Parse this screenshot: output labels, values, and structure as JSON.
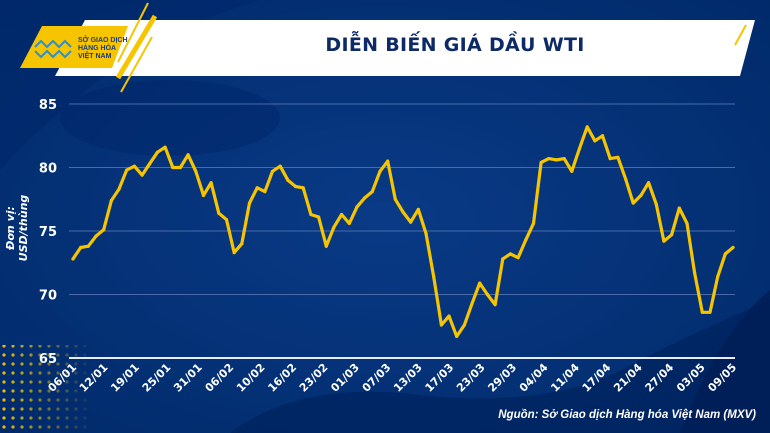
{
  "header": {
    "logo_text": [
      "SỞ GIAO DỊCH",
      "HÀNG HÓA",
      "VIỆT NAM"
    ],
    "title": "DIỄN BIẾN GIÁ DẦU WTI"
  },
  "colors": {
    "background": "#002d72",
    "line": "#f6c500",
    "accent": "#f6c500",
    "title": "#0d2a66"
  },
  "source": "Nguồn: Sở Giao dịch Hàng hóa Việt Nam (MXV)",
  "chart_data": {
    "type": "line",
    "title": "DIỄN BIẾN GIÁ DẦU WTI",
    "ylabel": "Đơn vị: USD/thùng",
    "xlabel": "",
    "ylim": [
      65,
      85
    ],
    "yticks": [
      65,
      70,
      75,
      80,
      85
    ],
    "grid": true,
    "x_tick_labels": [
      "06/01",
      "12/01",
      "19/01",
      "25/01",
      "31/01",
      "06/02",
      "10/02",
      "16/02",
      "23/02",
      "01/03",
      "07/03",
      "13/03",
      "17/03",
      "23/03",
      "29/03",
      "04/04",
      "11/04",
      "17/04",
      "21/04",
      "27/04",
      "03/05",
      "09/05"
    ],
    "values": [
      72.8,
      73.7,
      73.8,
      74.6,
      75.1,
      77.4,
      78.3,
      79.8,
      80.1,
      79.4,
      80.3,
      81.2,
      81.6,
      80.0,
      80.0,
      81.0,
      79.7,
      77.8,
      78.8,
      76.4,
      75.9,
      73.3,
      74.0,
      77.2,
      78.4,
      78.1,
      79.7,
      80.1,
      79.0,
      78.5,
      78.4,
      76.3,
      76.1,
      73.8,
      75.3,
      76.3,
      75.6,
      76.9,
      77.6,
      78.1,
      79.7,
      80.5,
      77.5,
      76.5,
      75.7,
      76.7,
      74.8,
      71.4,
      67.6,
      68.3,
      66.7,
      67.6,
      69.3,
      70.9,
      70.0,
      69.2,
      72.8,
      73.2,
      72.9,
      74.3,
      75.6,
      80.4,
      80.7,
      80.6,
      80.7,
      79.7,
      81.5,
      83.2,
      82.1,
      82.5,
      80.7,
      80.8,
      79.1,
      77.2,
      77.8,
      78.8,
      77.1,
      74.2,
      74.7,
      76.8,
      75.6,
      71.7,
      68.6,
      68.6,
      71.4,
      73.2,
      73.7
    ]
  }
}
